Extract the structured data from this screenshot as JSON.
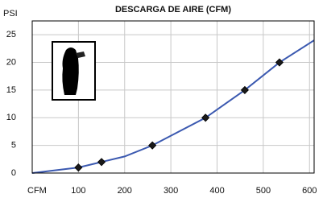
{
  "chart_data": {
    "type": "line",
    "title": "DESCARGA DE AIRE (CFM)",
    "ylabel": "PSI",
    "xlabel": "CFM",
    "series": [
      {
        "x": [
          0,
          100,
          150,
          200,
          260,
          375,
          460,
          535,
          610
        ],
        "values": [
          0,
          1,
          2,
          3,
          5,
          10,
          15,
          20,
          24
        ],
        "color": "#3b59b0"
      },
      {
        "x": [
          100,
          150,
          260,
          375,
          460,
          535
        ],
        "values": [
          1,
          2,
          5,
          10,
          15,
          20
        ],
        "color": "#1a1a1a",
        "marker": "diamond"
      }
    ],
    "xlim": [
      0,
      610
    ],
    "ylim": [
      0,
      27.5
    ],
    "xticks": [
      100,
      200,
      300,
      400,
      500,
      600
    ],
    "yticks": [
      0,
      5,
      10,
      15,
      20,
      25
    ],
    "grid": true
  }
}
